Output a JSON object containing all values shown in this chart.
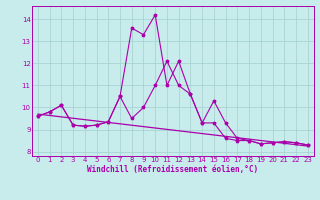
{
  "xlabel": "Windchill (Refroidissement éolien,°C)",
  "background_color": "#c8ecec",
  "grid_color": "#aad4d4",
  "line_color": "#aa00aa",
  "xlim": [
    -0.5,
    23.5
  ],
  "ylim": [
    7.8,
    14.6
  ],
  "yticks": [
    8,
    9,
    10,
    11,
    12,
    13,
    14
  ],
  "xticks": [
    0,
    1,
    2,
    3,
    4,
    5,
    6,
    7,
    8,
    9,
    10,
    11,
    12,
    13,
    14,
    15,
    16,
    17,
    18,
    19,
    20,
    21,
    22,
    23
  ],
  "series_spike_x": [
    0,
    1,
    2,
    3,
    4,
    5,
    6,
    7,
    8,
    9,
    10,
    11,
    12,
    13,
    14,
    15,
    16,
    17,
    18,
    19,
    20,
    21,
    22,
    23
  ],
  "series_spike_y": [
    9.6,
    9.8,
    10.1,
    9.2,
    9.15,
    9.2,
    9.35,
    10.5,
    13.6,
    13.3,
    14.2,
    11.0,
    12.1,
    10.6,
    9.3,
    10.3,
    9.3,
    8.6,
    8.5,
    8.35,
    8.4,
    8.45,
    8.4,
    8.3
  ],
  "series_lower_x": [
    0,
    1,
    2,
    3,
    4,
    5,
    6,
    7,
    8,
    9,
    10,
    11,
    12,
    13,
    14,
    15,
    16,
    17,
    18,
    19,
    20,
    21,
    22,
    23
  ],
  "series_lower_y": [
    9.6,
    9.8,
    10.1,
    9.2,
    9.15,
    9.2,
    9.35,
    10.5,
    9.5,
    10.0,
    11.0,
    12.1,
    11.0,
    10.6,
    9.3,
    9.3,
    8.6,
    8.5,
    8.5,
    8.35,
    8.4,
    8.45,
    8.4,
    8.3
  ],
  "series_line_x": [
    0,
    23
  ],
  "series_line_y": [
    9.7,
    8.25
  ]
}
